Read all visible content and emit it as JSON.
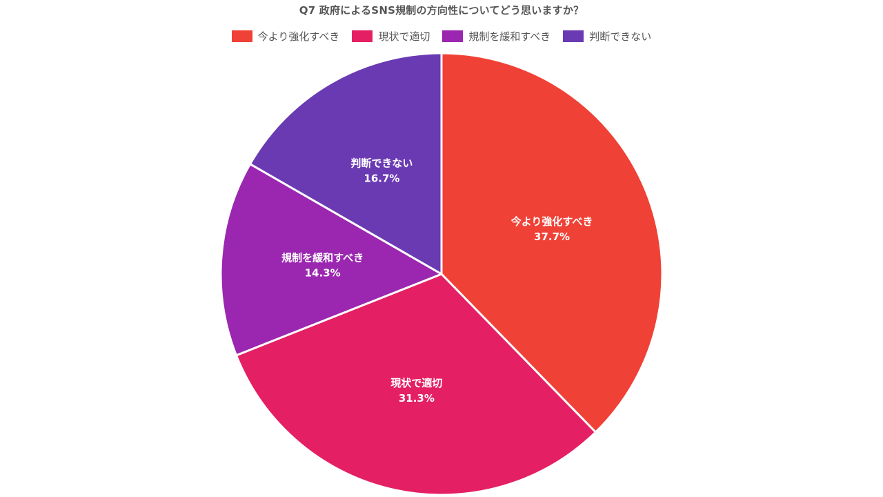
{
  "chart_data": {
    "type": "pie",
    "title": "Q7 政府によるSNS規制の方向性についてどう思いますか？",
    "legend_position": "top",
    "categories": [
      "今より強化すべき",
      "現状で適切",
      "規制を緩和すべき",
      "判断できない"
    ],
    "values": [
      37.7,
      31.3,
      14.3,
      16.7
    ],
    "value_labels": [
      "37.7%",
      "31.3%",
      "14.3%",
      "16.7%"
    ],
    "colors": [
      "#f04136",
      "#e41f63",
      "#9b27b0",
      "#6a3ab3"
    ]
  }
}
